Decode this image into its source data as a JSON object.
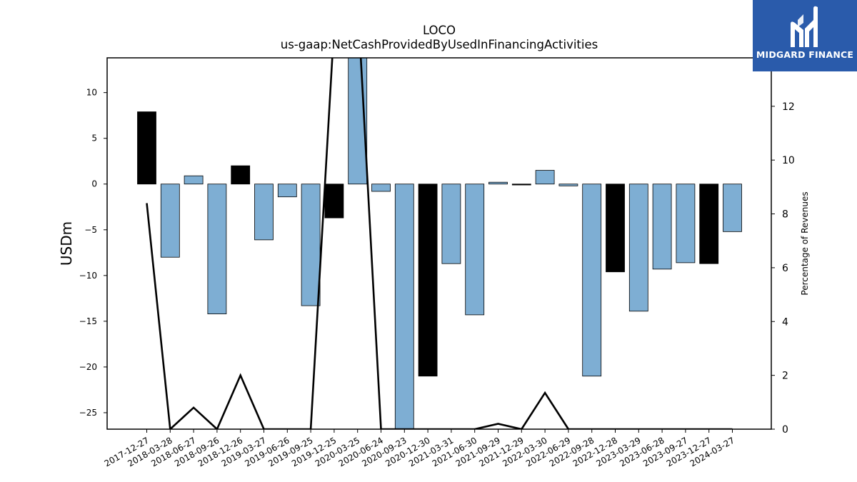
{
  "brand": {
    "name": "MIDGARD FINANCE",
    "background_color": "#2a5bab",
    "text_color": "#ffffff",
    "icon": "midgard-logo-icon"
  },
  "chart_data": {
    "type": "bar",
    "title": "LOCO",
    "subtitle": "us-gaap:NetCashProvidedByUsedInFinancingActivities",
    "ylabel": "USDm",
    "y2label": "Percentage of Revenues",
    "categories": [
      "2017-12-27",
      "2018-03-28",
      "2018-06-27",
      "2018-09-26",
      "2018-12-26",
      "2019-03-27",
      "2019-06-26",
      "2019-09-25",
      "2019-12-25",
      "2020-03-25",
      "2020-06-24",
      "2020-09-23",
      "2020-12-30",
      "2021-03-31",
      "2021-06-30",
      "2021-09-29",
      "2021-12-29",
      "2022-03-30",
      "2022-06-29",
      "2022-09-28",
      "2022-12-28",
      "2023-03-29",
      "2023-06-28",
      "2023-09-27",
      "2023-12-27",
      "2024-03-27"
    ],
    "series": [
      {
        "values": [
          7.9,
          -8.0,
          0.9,
          -14.2,
          2.0,
          -6.1,
          -1.4,
          -13.3,
          -3.7,
          14.5,
          -0.8,
          -26.8,
          -21.0,
          -8.7,
          -14.3,
          0.2,
          -0.1,
          1.5,
          -0.2,
          -21.0,
          -9.6,
          -13.9,
          -9.3,
          -8.6,
          -8.7,
          -5.2
        ],
        "colors": [
          "#000000",
          "#7eaed3",
          "#7eaed3",
          "#7eaed3",
          "#000000",
          "#7eaed3",
          "#7eaed3",
          "#7eaed3",
          "#000000",
          "#7eaed3",
          "#7eaed3",
          "#7eaed3",
          "#000000",
          "#7eaed3",
          "#7eaed3",
          "#7eaed3",
          "#000000",
          "#7eaed3",
          "#7eaed3",
          "#7eaed3",
          "#000000",
          "#7eaed3",
          "#7eaed3",
          "#7eaed3",
          "#000000",
          "#7eaed3"
        ]
      },
      {
        "type": "line",
        "axis": "right",
        "values": [
          8.4,
          0.0,
          0.8,
          0.0,
          2.0,
          0.0,
          0.0,
          0.0,
          15.0,
          16.0,
          0.0,
          0.0,
          0.0,
          0.0,
          0.0,
          0.2,
          0.0,
          1.35,
          0.0,
          0.0,
          0.0,
          0.0,
          0.0,
          0.0,
          0.0,
          0.0
        ]
      }
    ],
    "ylim": [
      -26.8,
      13.8
    ],
    "y2lim": [
      0,
      13.8
    ],
    "yticks": [
      10,
      5,
      0,
      -5,
      -10,
      -15,
      -20,
      -25
    ],
    "y2ticks": [
      0,
      2,
      4,
      6,
      8,
      10,
      12
    ],
    "grid": false,
    "legend": "none"
  }
}
